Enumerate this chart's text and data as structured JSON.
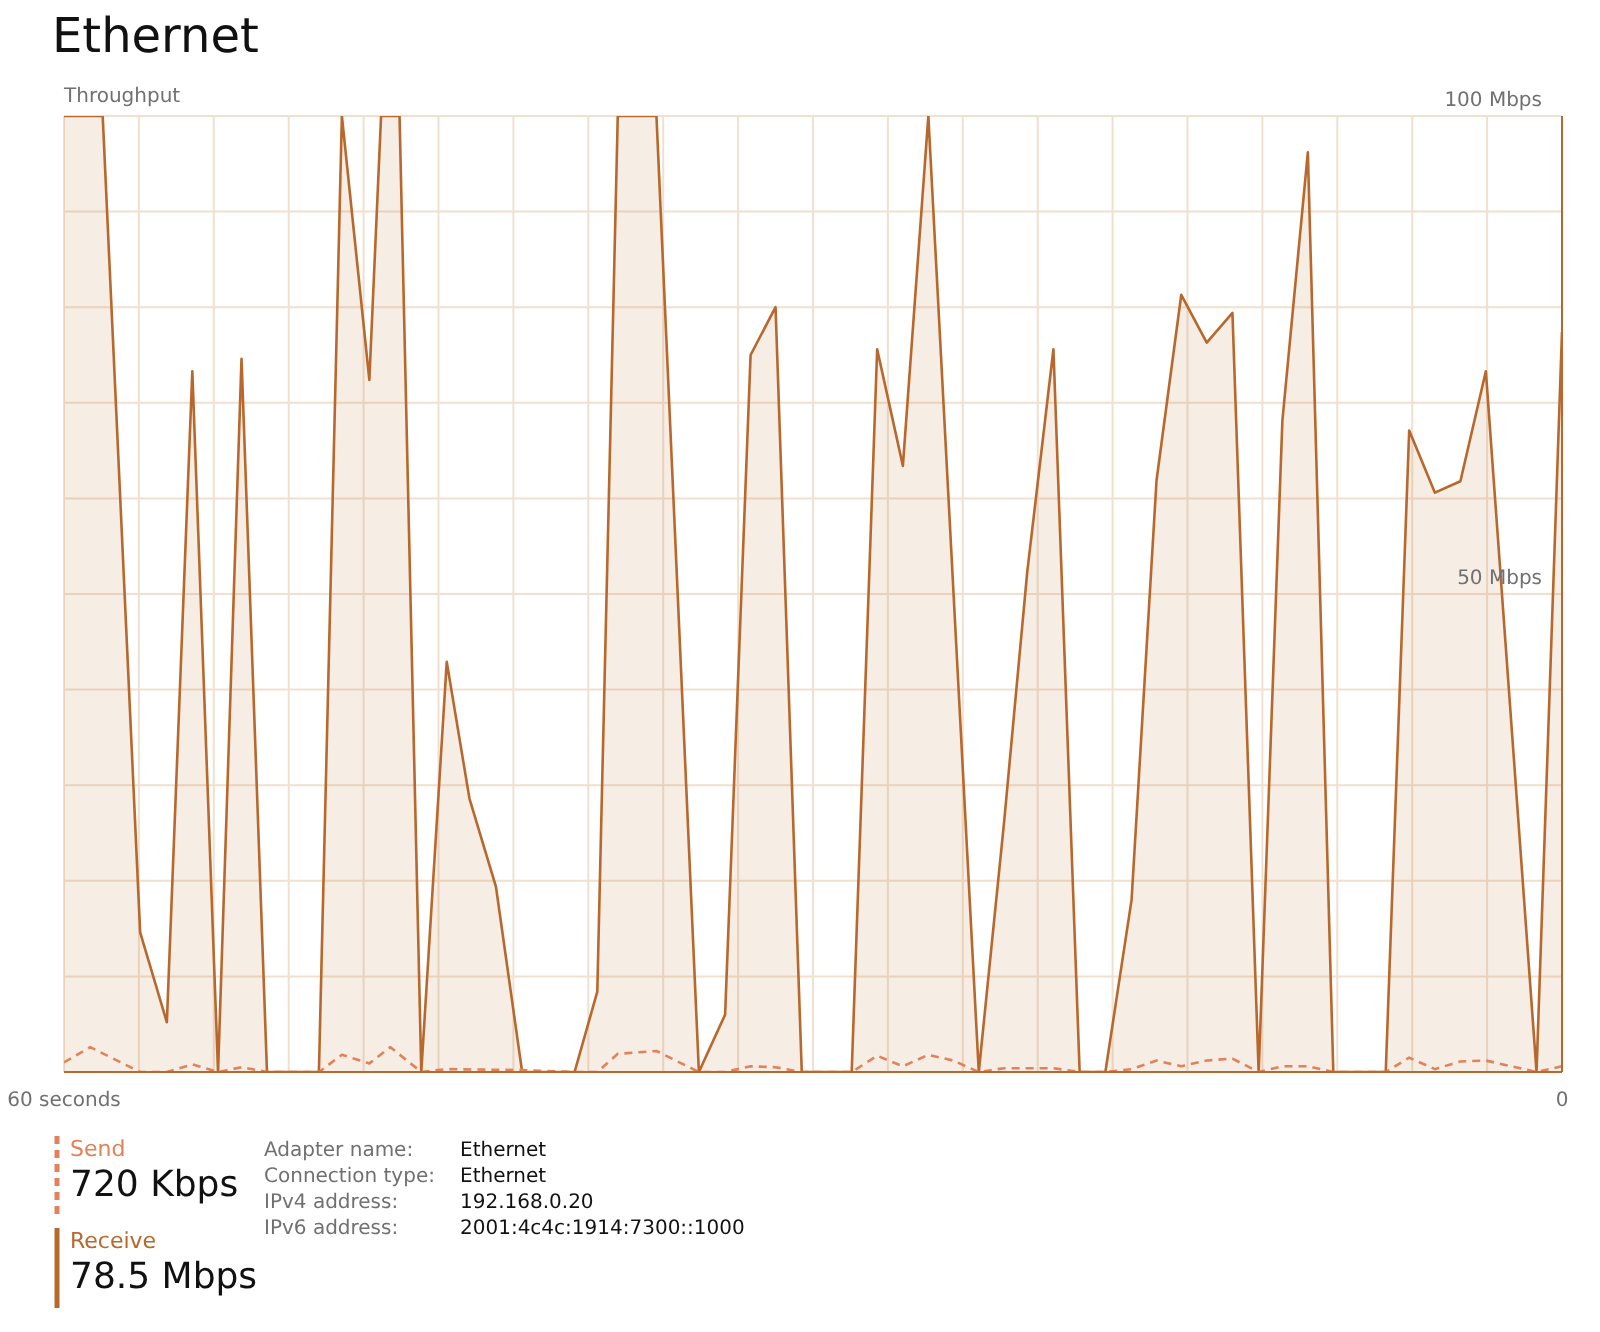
{
  "chart_data": {
    "type": "area",
    "title": "Ethernet",
    "ylabel": "Throughput",
    "xlim": [
      60,
      0
    ],
    "xticks": [
      {
        "value": 60,
        "label": "60 seconds"
      },
      {
        "value": 57,
        "label": null
      },
      {
        "value": 54,
        "label": null
      },
      {
        "value": 51,
        "label": null
      },
      {
        "value": 48,
        "label": null
      },
      {
        "value": 45,
        "label": null
      },
      {
        "value": 42,
        "label": null
      },
      {
        "value": 39,
        "label": null
      },
      {
        "value": 36,
        "label": null
      },
      {
        "value": 33,
        "label": null
      },
      {
        "value": 30,
        "label": null
      },
      {
        "value": 27,
        "label": null
      },
      {
        "value": 24,
        "label": null
      },
      {
        "value": 21,
        "label": null
      },
      {
        "value": 18,
        "label": null
      },
      {
        "value": 15,
        "label": null
      },
      {
        "value": 12,
        "label": null
      },
      {
        "value": 9,
        "label": null
      },
      {
        "value": 6,
        "label": null
      },
      {
        "value": 3,
        "label": null
      },
      {
        "value": 0,
        "label": "0"
      }
    ],
    "ylim": [
      0,
      100
    ],
    "yticks": [
      {
        "value": 0,
        "label": null
      },
      {
        "value": 10,
        "label": null
      },
      {
        "value": 20,
        "label": null
      },
      {
        "value": 30,
        "label": null
      },
      {
        "value": 40,
        "label": null
      },
      {
        "value": 50,
        "label": "50 Mbps"
      },
      {
        "value": 60,
        "label": null
      },
      {
        "value": 70,
        "label": null
      },
      {
        "value": 80,
        "label": null
      },
      {
        "value": 90,
        "label": null
      },
      {
        "value": 100,
        "label": "100 Mbps"
      }
    ],
    "grid": true,
    "legend": "bottom left",
    "series": [
      {
        "name": "Receive",
        "type": "area",
        "color": "#b8682c",
        "line_style": "solid",
        "x": [
          60,
          58.45,
          56.95,
          55.88,
          54.86,
          53.83,
          52.89,
          51.87,
          49.79,
          48.87,
          47.77,
          47.3,
          46.56,
          45.69,
          44.67,
          43.76,
          42.7,
          41.65,
          39.55,
          38.64,
          37.82,
          36.27,
          34.57,
          33.52,
          32.5,
          31.5,
          30.45,
          28.45,
          27.43,
          26.4,
          25.38,
          23.36,
          22.34,
          21.42,
          20.37,
          19.32,
          18.29,
          17.24,
          16.24,
          15.25,
          14.23,
          13.2,
          12.15,
          11.2,
          10.18,
          9.16,
          7.06,
          6.12,
          5.09,
          4.07,
          3.05,
          1.02,
          0
        ],
        "values": [
          100,
          100,
          14.6,
          5.2,
          73.3,
          0,
          74.6,
          0,
          0,
          100,
          72.4,
          100,
          100,
          0,
          42.9,
          28.6,
          19.4,
          0,
          0,
          8.4,
          100,
          100,
          0,
          6,
          75,
          80,
          0,
          0,
          75.6,
          63.4,
          100,
          0,
          26.3,
          52.3,
          75.6,
          0,
          0,
          18,
          61.9,
          81.3,
          76.3,
          79.4,
          0,
          68.1,
          96.2,
          0,
          0,
          67.1,
          60.6,
          61.8,
          73.3,
          0,
          77.4
        ]
      },
      {
        "name": "Send",
        "type": "line",
        "color": "#e2825a",
        "line_style": "dashed",
        "x": [
          60,
          58.95,
          56.95,
          55.88,
          54.86,
          53.83,
          52.89,
          51.87,
          49.79,
          48.87,
          47.77,
          46.93,
          45.69,
          44.67,
          41.65,
          39.55,
          38.64,
          37.82,
          36.27,
          34.57,
          33.52,
          32.5,
          31.5,
          30.45,
          28.45,
          27.43,
          26.4,
          25.38,
          24.39,
          23.36,
          22.34,
          20.37,
          19.32,
          18.29,
          17.24,
          16.24,
          15.25,
          14.23,
          13.2,
          12.15,
          11.2,
          10.18,
          9.16,
          7.06,
          6.12,
          5.09,
          4.07,
          3.05,
          1.02,
          0
        ],
        "values": [
          1,
          2.6,
          0,
          0,
          0.8,
          0,
          0.5,
          0,
          0,
          1.8,
          0.9,
          2.6,
          0,
          0.3,
          0.2,
          0,
          0,
          1.9,
          2.2,
          0,
          0,
          0.6,
          0.5,
          0,
          0,
          1.7,
          0.6,
          1.8,
          1.2,
          0,
          0.4,
          0.4,
          0,
          0,
          0.3,
          1.2,
          0.6,
          1.2,
          1.4,
          0,
          0.6,
          0.6,
          0,
          0,
          1.5,
          0.3,
          1.1,
          1.2,
          0,
          0.6
        ]
      }
    ],
    "annotations": [
      "720 Kbps",
      "78.5 Mbps",
      "Adapter name:",
      "Ethernet",
      "Connection type:",
      "Ethernet",
      "IPv4 address:",
      "192.168.0.20",
      "IPv6 address:",
      "2001:4c4c:1914:7300::1000"
    ]
  }
}
